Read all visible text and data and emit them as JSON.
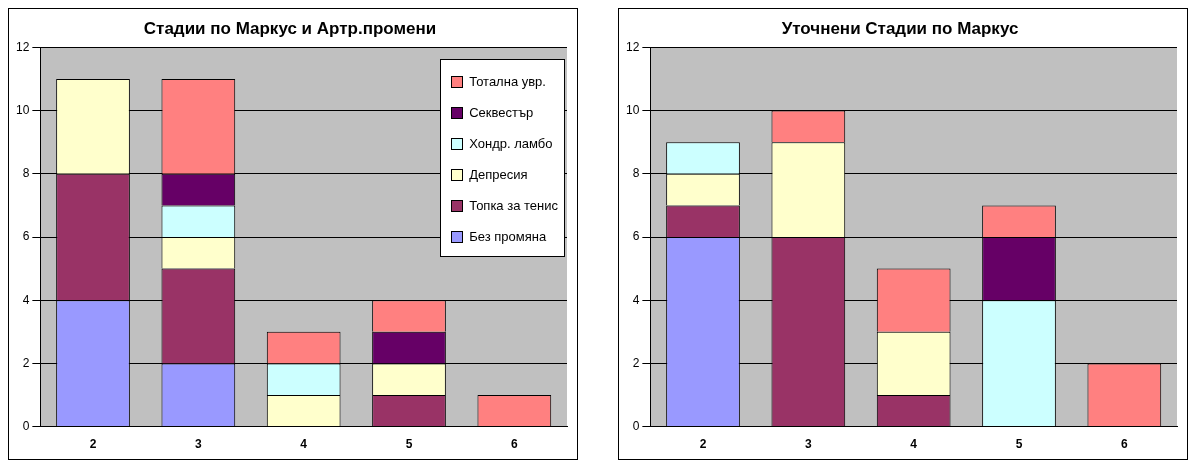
{
  "chart_data": [
    {
      "type": "bar",
      "title": "Стадии по Маркус и Артр.промени",
      "categories": [
        "2",
        "3",
        "4",
        "5",
        "6"
      ],
      "stacked": true,
      "ylim": [
        0,
        12
      ],
      "yticks": [
        0,
        2,
        4,
        6,
        8,
        10,
        12
      ],
      "grid": "y",
      "legend": "top right",
      "series": [
        {
          "name": "Без промяна",
          "color": "#9999ff",
          "values": [
            4,
            2,
            0,
            0,
            0
          ]
        },
        {
          "name": "Топка за тенис",
          "color": "#993366",
          "values": [
            4,
            3,
            0,
            1,
            0
          ]
        },
        {
          "name": "Депресия",
          "color": "#ffffcc",
          "values": [
            3,
            1,
            1,
            1,
            0
          ]
        },
        {
          "name": "Хондр. ламбо",
          "color": "#ccffff",
          "values": [
            0,
            1,
            1,
            0,
            0
          ]
        },
        {
          "name": "Секвестър",
          "color": "#660066",
          "values": [
            0,
            1,
            0,
            1,
            0
          ]
        },
        {
          "name": "Тотална увр.",
          "color": "#ff8080",
          "values": [
            0,
            3,
            1,
            1,
            1
          ]
        }
      ]
    },
    {
      "type": "bar",
      "title": "Уточнени Стадии по Маркус",
      "categories": [
        "2",
        "3",
        "4",
        "5",
        "6"
      ],
      "stacked": true,
      "ylim": [
        0,
        12
      ],
      "yticks": [
        0,
        2,
        4,
        6,
        8,
        10,
        12
      ],
      "grid": "y",
      "series": [
        {
          "color": "#9999ff",
          "values": [
            6,
            0,
            0,
            0,
            0
          ]
        },
        {
          "color": "#993366",
          "values": [
            1,
            6,
            1,
            0,
            0
          ]
        },
        {
          "color": "#ffffcc",
          "values": [
            1,
            3,
            2,
            0,
            0
          ]
        },
        {
          "color": "#ccffff",
          "values": [
            1,
            0,
            0,
            4,
            0
          ]
        },
        {
          "color": "#660066",
          "values": [
            0,
            0,
            0,
            2,
            0
          ]
        },
        {
          "color": "#ff8080",
          "values": [
            0,
            1,
            2,
            1,
            2
          ]
        }
      ]
    }
  ]
}
